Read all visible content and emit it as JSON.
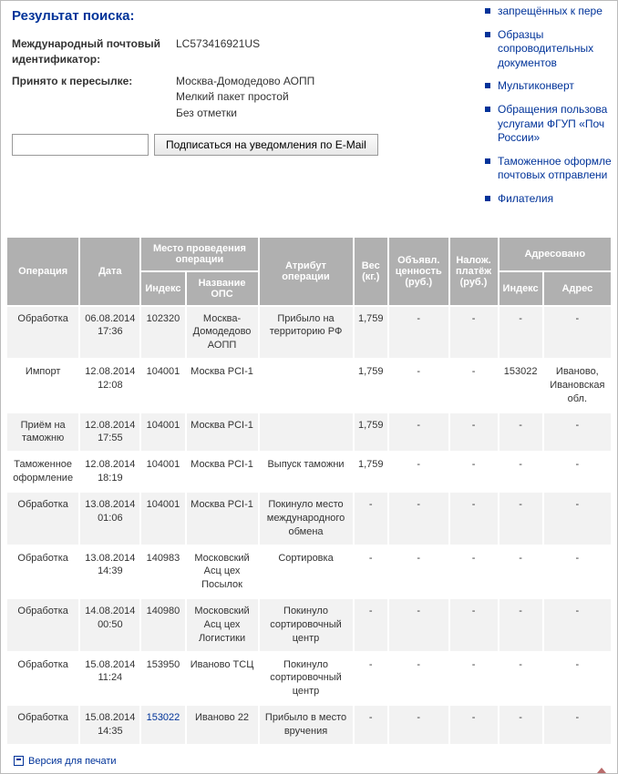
{
  "title": "Результат поиска:",
  "info": {
    "id_label": "Международный почтовый идентификатор:",
    "id_value": "LC573416921US",
    "accept_label": "Принято к пересылке:",
    "accept_lines": [
      "Москва-Домодедово АОПП",
      "Мелкий пакет простой",
      "Без отметки"
    ]
  },
  "subscribe": {
    "button": "Подписаться на уведомления по E-Mail",
    "placeholder": ""
  },
  "sidebar_links": [
    "запрещённых к пере",
    "Образцы сопроводительных документов",
    "Мультиконверт",
    "Обращения пользова услугами ФГУП «Поч России»",
    "Таможенное оформле почтовых отправлени",
    "Филателия"
  ],
  "table": {
    "headers": {
      "op": "Операция",
      "date": "Дата",
      "loc_group": "Место проведения операции",
      "loc_idx": "Индекс",
      "loc_ops": "Название ОПС",
      "attr": "Атрибут операции",
      "weight": "Вес (кг.)",
      "declared": "Объявл. ценность (руб.)",
      "cod": "Налож. платёж (руб.)",
      "addr_group": "Адресовано",
      "addr_idx": "Индекс",
      "addr": "Адрес"
    },
    "rows": [
      {
        "op": "Обработка",
        "date": "06.08.2014 17:36",
        "idx": "102320",
        "ops": "Москва-Домодедово АОПП",
        "attr": "Прибыло на территорию РФ",
        "w": "1,759",
        "dec": "-",
        "cod": "-",
        "aidx": "-",
        "adr": "-"
      },
      {
        "op": "Импорт",
        "date": "12.08.2014 12:08",
        "idx": "104001",
        "ops": "Москва PCI-1",
        "attr": "",
        "w": "1,759",
        "dec": "-",
        "cod": "-",
        "aidx": "153022",
        "adr": "Иваново, Ивановская обл."
      },
      {
        "op": "Приём на таможню",
        "date": "12.08.2014 17:55",
        "idx": "104001",
        "ops": "Москва PCI-1",
        "attr": "",
        "w": "1,759",
        "dec": "-",
        "cod": "-",
        "aidx": "-",
        "adr": "-"
      },
      {
        "op": "Таможенное оформление",
        "date": "12.08.2014 18:19",
        "idx": "104001",
        "ops": "Москва PCI-1",
        "attr": "Выпуск таможни",
        "w": "1,759",
        "dec": "-",
        "cod": "-",
        "aidx": "-",
        "adr": "-"
      },
      {
        "op": "Обработка",
        "date": "13.08.2014 01:06",
        "idx": "104001",
        "ops": "Москва PCI-1",
        "attr": "Покинуло место международного обмена",
        "w": "-",
        "dec": "-",
        "cod": "-",
        "aidx": "-",
        "adr": "-"
      },
      {
        "op": "Обработка",
        "date": "13.08.2014 14:39",
        "idx": "140983",
        "ops": "Московский Асц цех Посылок",
        "attr": "Сортировка",
        "w": "-",
        "dec": "-",
        "cod": "-",
        "aidx": "-",
        "adr": "-"
      },
      {
        "op": "Обработка",
        "date": "14.08.2014 00:50",
        "idx": "140980",
        "ops": "Московский Асц цех Логистики",
        "attr": "Покинуло сортировочный центр",
        "w": "-",
        "dec": "-",
        "cod": "-",
        "aidx": "-",
        "adr": "-"
      },
      {
        "op": "Обработка",
        "date": "15.08.2014 11:24",
        "idx": "153950",
        "ops": "Иваново ТСЦ",
        "attr": "Покинуло сортировочный центр",
        "w": "-",
        "dec": "-",
        "cod": "-",
        "aidx": "-",
        "adr": "-"
      },
      {
        "op": "Обработка",
        "date": "15.08.2014 14:35",
        "idx": "153022",
        "idx_link": true,
        "ops": "Иваново 22",
        "attr": "Прибыло в место вручения",
        "w": "-",
        "dec": "-",
        "cod": "-",
        "aidx": "-",
        "adr": "-"
      }
    ]
  },
  "footer": {
    "print": "Версия для печати"
  },
  "colors": {
    "link": "#003399",
    "th_bg": "#b0b0b0",
    "row_odd": "#f2f2f2"
  }
}
